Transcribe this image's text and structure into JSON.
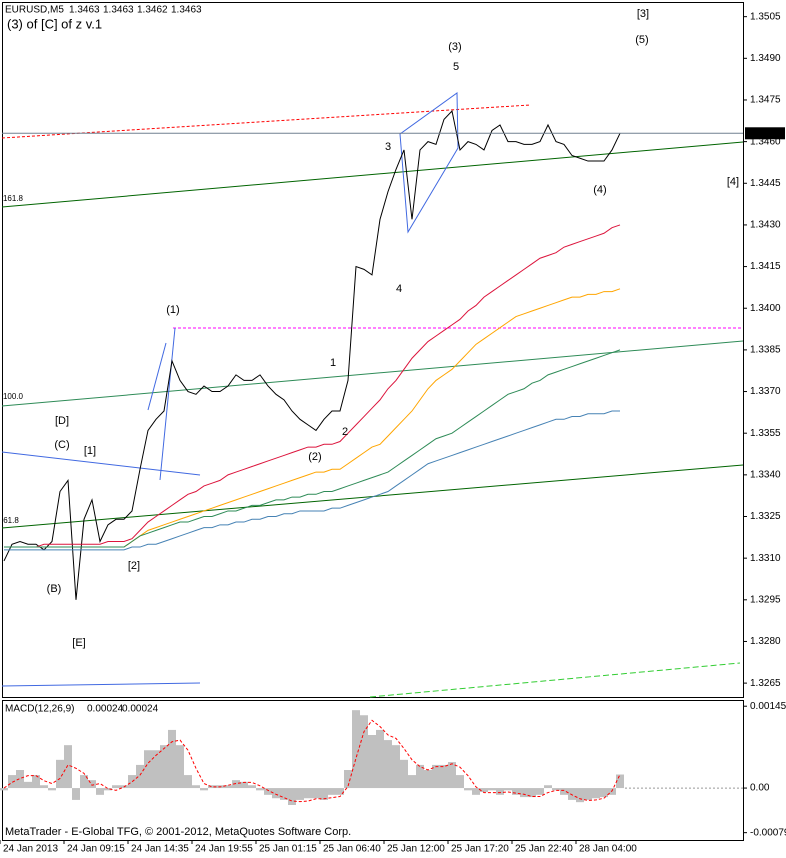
{
  "chart_data": [
    {
      "type": "line",
      "title": "EURUSD,M5",
      "subtitle": "(3) of [C] of z v.1",
      "bar_ohlc": [
        1.3463,
        1.3463,
        1.3462,
        1.3463
      ],
      "last_price": 1.3463,
      "watermark": "MetaTrader - E-Global TFG, © 2001-2012, MetaQuotes Software Corp.",
      "categories": [
        "24 Jan 2013",
        null,
        null,
        null,
        null,
        null,
        null,
        null,
        "24 Jan 09:15",
        null,
        null,
        null,
        null,
        null,
        null,
        null,
        "24 Jan 14:35",
        null,
        null,
        null,
        null,
        null,
        null,
        null,
        "24 Jan 19:55",
        null,
        null,
        null,
        null,
        null,
        null,
        null,
        "25 Jan 01:15",
        null,
        null,
        null,
        null,
        null,
        null,
        null,
        "25 Jan 06:40",
        null,
        null,
        null,
        null,
        null,
        null,
        null,
        "25 Jan 12:00",
        null,
        null,
        null,
        null,
        null,
        null,
        null,
        "25 Jan 17:20",
        null,
        null,
        null,
        null,
        null,
        null,
        null,
        "25 Jan 22:40",
        null,
        null,
        null,
        null,
        null,
        null,
        null,
        "28 Jan 04:00",
        null,
        null,
        null,
        null,
        null
      ],
      "series": [
        {
          "color": "#000000",
          "values": [
            1.3309,
            1.3315,
            1.3316,
            1.3315,
            1.3315,
            1.3313,
            1.3316,
            1.3334,
            1.3338,
            1.3295,
            1.3324,
            1.3331,
            1.3316,
            1.3322,
            1.3324,
            1.3324,
            1.3327,
            1.3342,
            1.3356,
            1.336,
            1.3363,
            1.3381,
            1.3374,
            1.337,
            1.3369,
            1.3372,
            1.337,
            1.337,
            1.3372,
            1.3376,
            1.3374,
            1.3374,
            1.3376,
            1.3372,
            1.3369,
            1.3367,
            1.3363,
            1.336,
            1.3358,
            1.3356,
            1.336,
            1.3363,
            1.3363,
            1.3374,
            1.3415,
            1.3414,
            1.3412,
            1.3432,
            1.3442,
            1.345,
            1.3457,
            1.3432,
            1.3457,
            1.346,
            1.3459,
            1.3468,
            1.3471,
            1.3457,
            1.346,
            1.3459,
            1.3457,
            1.3464,
            1.3466,
            1.346,
            1.346,
            1.3459,
            1.3459,
            1.346,
            1.3466,
            1.346,
            1.3459,
            1.3455,
            1.3454,
            1.3453,
            1.3453,
            1.3453,
            1.3457,
            1.3463
          ]
        },
        {
          "color": "#dc143c",
          "values": [
            1.3314,
            1.3314,
            1.3314,
            1.3314,
            1.3314,
            1.3315,
            1.3315,
            1.3315,
            1.3315,
            1.3315,
            1.3315,
            1.3315,
            1.3315,
            1.3316,
            1.3316,
            1.3316,
            1.3317,
            1.332,
            1.3323,
            1.3325,
            1.3327,
            1.3329,
            1.3331,
            1.3333,
            1.3334,
            1.3336,
            1.3337,
            1.3338,
            1.334,
            1.3341,
            1.3342,
            1.3343,
            1.3344,
            1.3345,
            1.3346,
            1.3347,
            1.3348,
            1.3349,
            1.335,
            1.335,
            1.3351,
            1.3351,
            1.3352,
            1.3355,
            1.3358,
            1.3361,
            1.3364,
            1.3367,
            1.3371,
            1.3374,
            1.3378,
            1.3382,
            1.3385,
            1.3388,
            1.339,
            1.3392,
            1.3394,
            1.3396,
            1.3399,
            1.3401,
            1.3404,
            1.3406,
            1.3408,
            1.341,
            1.3412,
            1.3414,
            1.3416,
            1.3418,
            1.3419,
            1.342,
            1.3422,
            1.3423,
            1.3424,
            1.3425,
            1.3426,
            1.3427,
            1.3429,
            1.343
          ]
        },
        {
          "color": "#ffa500",
          "values": [
            1.3314,
            1.3314,
            1.3314,
            1.3314,
            1.3314,
            1.3314,
            1.3314,
            1.3314,
            1.3314,
            1.3314,
            1.3314,
            1.3314,
            1.3314,
            1.3314,
            1.3314,
            1.3314,
            1.3316,
            1.3318,
            1.332,
            1.3321,
            1.3322,
            1.3323,
            1.3324,
            1.3325,
            1.3326,
            1.3327,
            1.3328,
            1.3329,
            1.333,
            1.3331,
            1.3332,
            1.3333,
            1.3334,
            1.3335,
            1.3336,
            1.3337,
            1.3338,
            1.3339,
            1.334,
            1.3341,
            1.3341,
            1.3342,
            1.3342,
            1.3344,
            1.3346,
            1.3348,
            1.335,
            1.3351,
            1.3354,
            1.3357,
            1.336,
            1.3363,
            1.3367,
            1.3371,
            1.3374,
            1.3376,
            1.3378,
            1.3381,
            1.3384,
            1.3387,
            1.3389,
            1.3391,
            1.3393,
            1.3395,
            1.3397,
            1.3398,
            1.3399,
            1.34,
            1.3401,
            1.3402,
            1.3403,
            1.3404,
            1.3404,
            1.3405,
            1.3405,
            1.3406,
            1.3406,
            1.3407
          ]
        },
        {
          "color": "#2e8b57",
          "values": [
            1.3314,
            1.3314,
            1.3314,
            1.3314,
            1.3314,
            1.3314,
            1.3314,
            1.3314,
            1.3314,
            1.3314,
            1.3314,
            1.3314,
            1.3314,
            1.3314,
            1.3314,
            1.3314,
            1.3316,
            1.3318,
            1.3319,
            1.332,
            1.3321,
            1.3322,
            1.3323,
            1.3323,
            1.3324,
            1.3325,
            1.3325,
            1.3326,
            1.3327,
            1.3327,
            1.3328,
            1.3329,
            1.3329,
            1.333,
            1.3331,
            1.3331,
            1.3332,
            1.3332,
            1.3333,
            1.3333,
            1.3334,
            1.3334,
            1.3335,
            1.3336,
            1.3337,
            1.3338,
            1.3339,
            1.334,
            1.3341,
            1.3343,
            1.3345,
            1.3347,
            1.3349,
            1.3351,
            1.3353,
            1.3354,
            1.3355,
            1.3357,
            1.3359,
            1.3361,
            1.3363,
            1.3365,
            1.3367,
            1.3369,
            1.337,
            1.3371,
            1.3373,
            1.3374,
            1.3376,
            1.3377,
            1.3378,
            1.3379,
            1.338,
            1.3381,
            1.3382,
            1.3383,
            1.3384,
            1.3385
          ]
        },
        {
          "color": "#4682b4",
          "values": [
            1.3313,
            1.3313,
            1.3313,
            1.3313,
            1.3313,
            1.3313,
            1.3313,
            1.3313,
            1.3313,
            1.3313,
            1.3313,
            1.3313,
            1.3313,
            1.3313,
            1.3313,
            1.3313,
            1.3314,
            1.3314,
            1.3315,
            1.3315,
            1.3316,
            1.3317,
            1.3318,
            1.3319,
            1.332,
            1.3321,
            1.3321,
            1.3322,
            1.3322,
            1.3323,
            1.3323,
            1.3324,
            1.3324,
            1.3325,
            1.3325,
            1.3326,
            1.3326,
            1.3327,
            1.3327,
            1.3327,
            1.3327,
            1.3328,
            1.3328,
            1.3329,
            1.333,
            1.3331,
            1.3332,
            1.3333,
            1.3334,
            1.3336,
            1.3338,
            1.334,
            1.3342,
            1.3344,
            1.3345,
            1.3346,
            1.3347,
            1.3348,
            1.3349,
            1.335,
            1.3351,
            1.3352,
            1.3353,
            1.3354,
            1.3355,
            1.3356,
            1.3357,
            1.3358,
            1.3359,
            1.336,
            1.336,
            1.3361,
            1.3361,
            1.3362,
            1.3362,
            1.3362,
            1.3363,
            1.3363
          ]
        }
      ],
      "ylim": [
        1.326,
        1.3511
      ],
      "yticks": [
        1.3505,
        {
          "value": 1.349,
          "label": "1.3490"
        },
        1.3475,
        {
          "value": 1.346,
          "label": "1.3460"
        },
        1.3445,
        {
          "value": 1.343,
          "label": "1.3430"
        },
        1.3415,
        {
          "value": 1.34,
          "label": "1.3400"
        },
        1.3385,
        {
          "value": 1.337,
          "label": "1.3370"
        },
        1.3355,
        {
          "value": 1.334,
          "label": "1.3340"
        },
        1.3325,
        {
          "value": 1.331,
          "label": "1.3310"
        },
        1.3295,
        {
          "value": 1.328,
          "label": "1.3280"
        },
        1.3265
      ],
      "annotations": [
        {
          "text": "(3)",
          "color": "#00008b"
        },
        {
          "text": "5",
          "color": "#e00000"
        },
        {
          "text": "3",
          "color": "#e00000"
        },
        {
          "text": "4",
          "color": "#e00000"
        },
        {
          "text": "1",
          "color": "#e00000"
        },
        {
          "text": "2",
          "color": "#e00000"
        },
        {
          "text": "(2)",
          "color": "#00008b"
        },
        {
          "text": "(1)",
          "color": "#00008b"
        },
        {
          "text": "(C)",
          "color": "#00008b"
        },
        {
          "text": "[1]",
          "color": "#008000"
        },
        {
          "text": "[D]",
          "color": "#008000"
        },
        {
          "text": "(B)",
          "color": "#00008b"
        },
        {
          "text": "[E]",
          "color": "#008000"
        },
        {
          "text": "[2]",
          "color": "#008000"
        },
        {
          "text": "(4)",
          "color": "#00008b"
        },
        {
          "text": "[3]",
          "color": "#008000"
        },
        {
          "text": "(5)",
          "color": "#00008b"
        },
        {
          "text": "[4]",
          "color": "#008000"
        },
        {
          "text": "161.8",
          "color": "#006400"
        },
        {
          "text": "100.0",
          "color": "#006400"
        },
        {
          "text": "61.8",
          "color": "#006400"
        }
      ]
    },
    {
      "type": "bar",
      "title": "MACD(12,26,9)",
      "series": [
        {
          "color": "#c0c0c0",
          "values": [
            -4e-05,
            0.00023,
            0.00032,
            0.00011,
            0.00023,
            5e-05,
            -4e-05,
            0.0005,
            0.00076,
            -0.00021,
            0.00023,
            0.00014,
            -0.00012,
            -4e-05,
            5e-05,
            5e-05,
            0.00023,
            0.00041,
            0.00067,
            0.00067,
            0.00076,
            0.00103,
            0.00076,
            0.00023,
            5e-05,
            -4e-05,
            5e-05,
            5e-05,
            5e-05,
            0.00014,
            0.00011,
            5e-05,
            -4e-05,
            -0.00012,
            -0.00018,
            -0.00021,
            -0.0003,
            -0.00021,
            -0.00018,
            -0.00018,
            -0.00021,
            -0.00012,
            -0.00012,
            0.00032,
            0.00138,
            0.00129,
            0.00094,
            0.00103,
            0.00085,
            0.00076,
            0.0005,
            0.00023,
            0.00041,
            0.00032,
            0.00041,
            0.00041,
            0.00046,
            0.00023,
            -4e-05,
            -0.00012,
            -7e-05,
            -4e-05,
            -0.00012,
            -4e-05,
            -0.00012,
            -0.00016,
            -0.00016,
            -0.00012,
            5e-05,
            -4e-05,
            -0.00012,
            -0.00021,
            -0.00025,
            -0.00021,
            -0.00018,
            -0.00016,
            -0.00012,
            0.00024
          ]
        },
        {
          "type": "line",
          "dash": true,
          "color": "#ff0000",
          "values": [
            0,
            0.0001,
            0.00017,
            0.00022,
            0.00022,
            0.00013,
            8e-05,
            0.00017,
            0.00041,
            0.00035,
            0.00026,
            5e-05,
            8e-05,
            -1e-05,
            -4e-05,
            2e-05,
            0.00011,
            0.00023,
            0.00044,
            0.00058,
            0.0007,
            0.00082,
            0.00085,
            0.00067,
            0.00035,
            8e-05,
            2e-05,
            2e-05,
            5e-05,
            8e-05,
            0.0001,
            0.0001,
            4e-05,
            -4e-05,
            -0.00011,
            -0.00017,
            -0.00023,
            -0.00024,
            -0.00023,
            -0.00019,
            -0.00019,
            -0.00017,
            -0.00015,
            3e-05,
            0.00053,
            0.001,
            0.0012,
            0.00109,
            0.00094,
            0.00088,
            0.0007,
            0.0005,
            0.00038,
            0.00032,
            0.00038,
            0.00038,
            0.00043,
            0.00037,
            0.00022,
            2e-05,
            -8e-05,
            -8e-05,
            -8e-05,
            -7e-05,
            -9e-05,
            -0.00011,
            -0.00015,
            -0.00015,
            -8e-05,
            -4e-05,
            -4e-05,
            -0.00012,
            -0.00019,
            -0.00022,
            -0.00021,
            -0.00018,
            -5e-05,
            0.00024
          ]
        }
      ],
      "ylim": [
        -0.00092,
        0.00156
      ],
      "yticks": [
        0.00145,
        {
          "value": 0,
          "label": "0.00"
        },
        -0.00079
      ]
    }
  ]
}
